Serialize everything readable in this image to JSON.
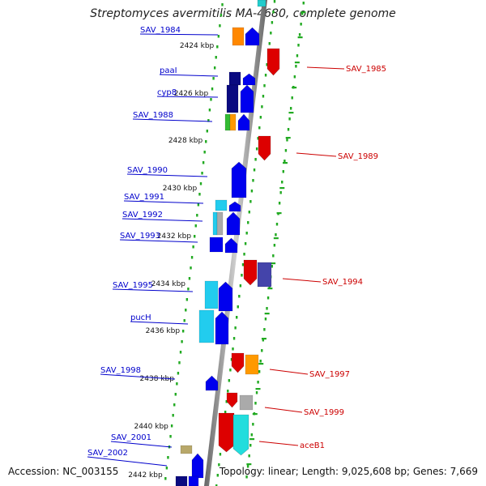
{
  "title": "Streptomyces avermitilis MA-4680, complete genome",
  "accession": "Accession: NC_003155",
  "topology": "Topology: linear; Length: 9,025,608 bp; Genes: 7,669",
  "colors": {
    "left_label": "#0000cc",
    "right_label": "#cc0000",
    "axis": "#999999",
    "dots": "#22aa22"
  },
  "ticks": [
    {
      "label": "2424 kbp"
    },
    {
      "label": "2426 kbp"
    },
    {
      "label": "2428 kbp"
    },
    {
      "label": "2430 kbp"
    },
    {
      "label": "2432 kbp"
    },
    {
      "label": "2434 kbp"
    },
    {
      "label": "2436 kbp"
    },
    {
      "label": "2438 kbp"
    },
    {
      "label": "2440 kbp"
    },
    {
      "label": "2442 kbp"
    }
  ],
  "left_genes": [
    {
      "name": "SAV_1984"
    },
    {
      "name": "paaI"
    },
    {
      "name": "cyp8"
    },
    {
      "name": "SAV_1988"
    },
    {
      "name": "SAV_1990"
    },
    {
      "name": "SAV_1991"
    },
    {
      "name": "SAV_1992"
    },
    {
      "name": "SAV_1993"
    },
    {
      "name": "SAV_1995"
    },
    {
      "name": "pucH"
    },
    {
      "name": "SAV_1998"
    },
    {
      "name": "SAV_2001"
    },
    {
      "name": "SAV_2002"
    }
  ],
  "right_genes": [
    {
      "name": "SAV_1985"
    },
    {
      "name": "SAV_1989"
    },
    {
      "name": "SAV_1994"
    },
    {
      "name": "SAV_1997"
    },
    {
      "name": "SAV_1999"
    },
    {
      "name": "aceB1"
    }
  ]
}
